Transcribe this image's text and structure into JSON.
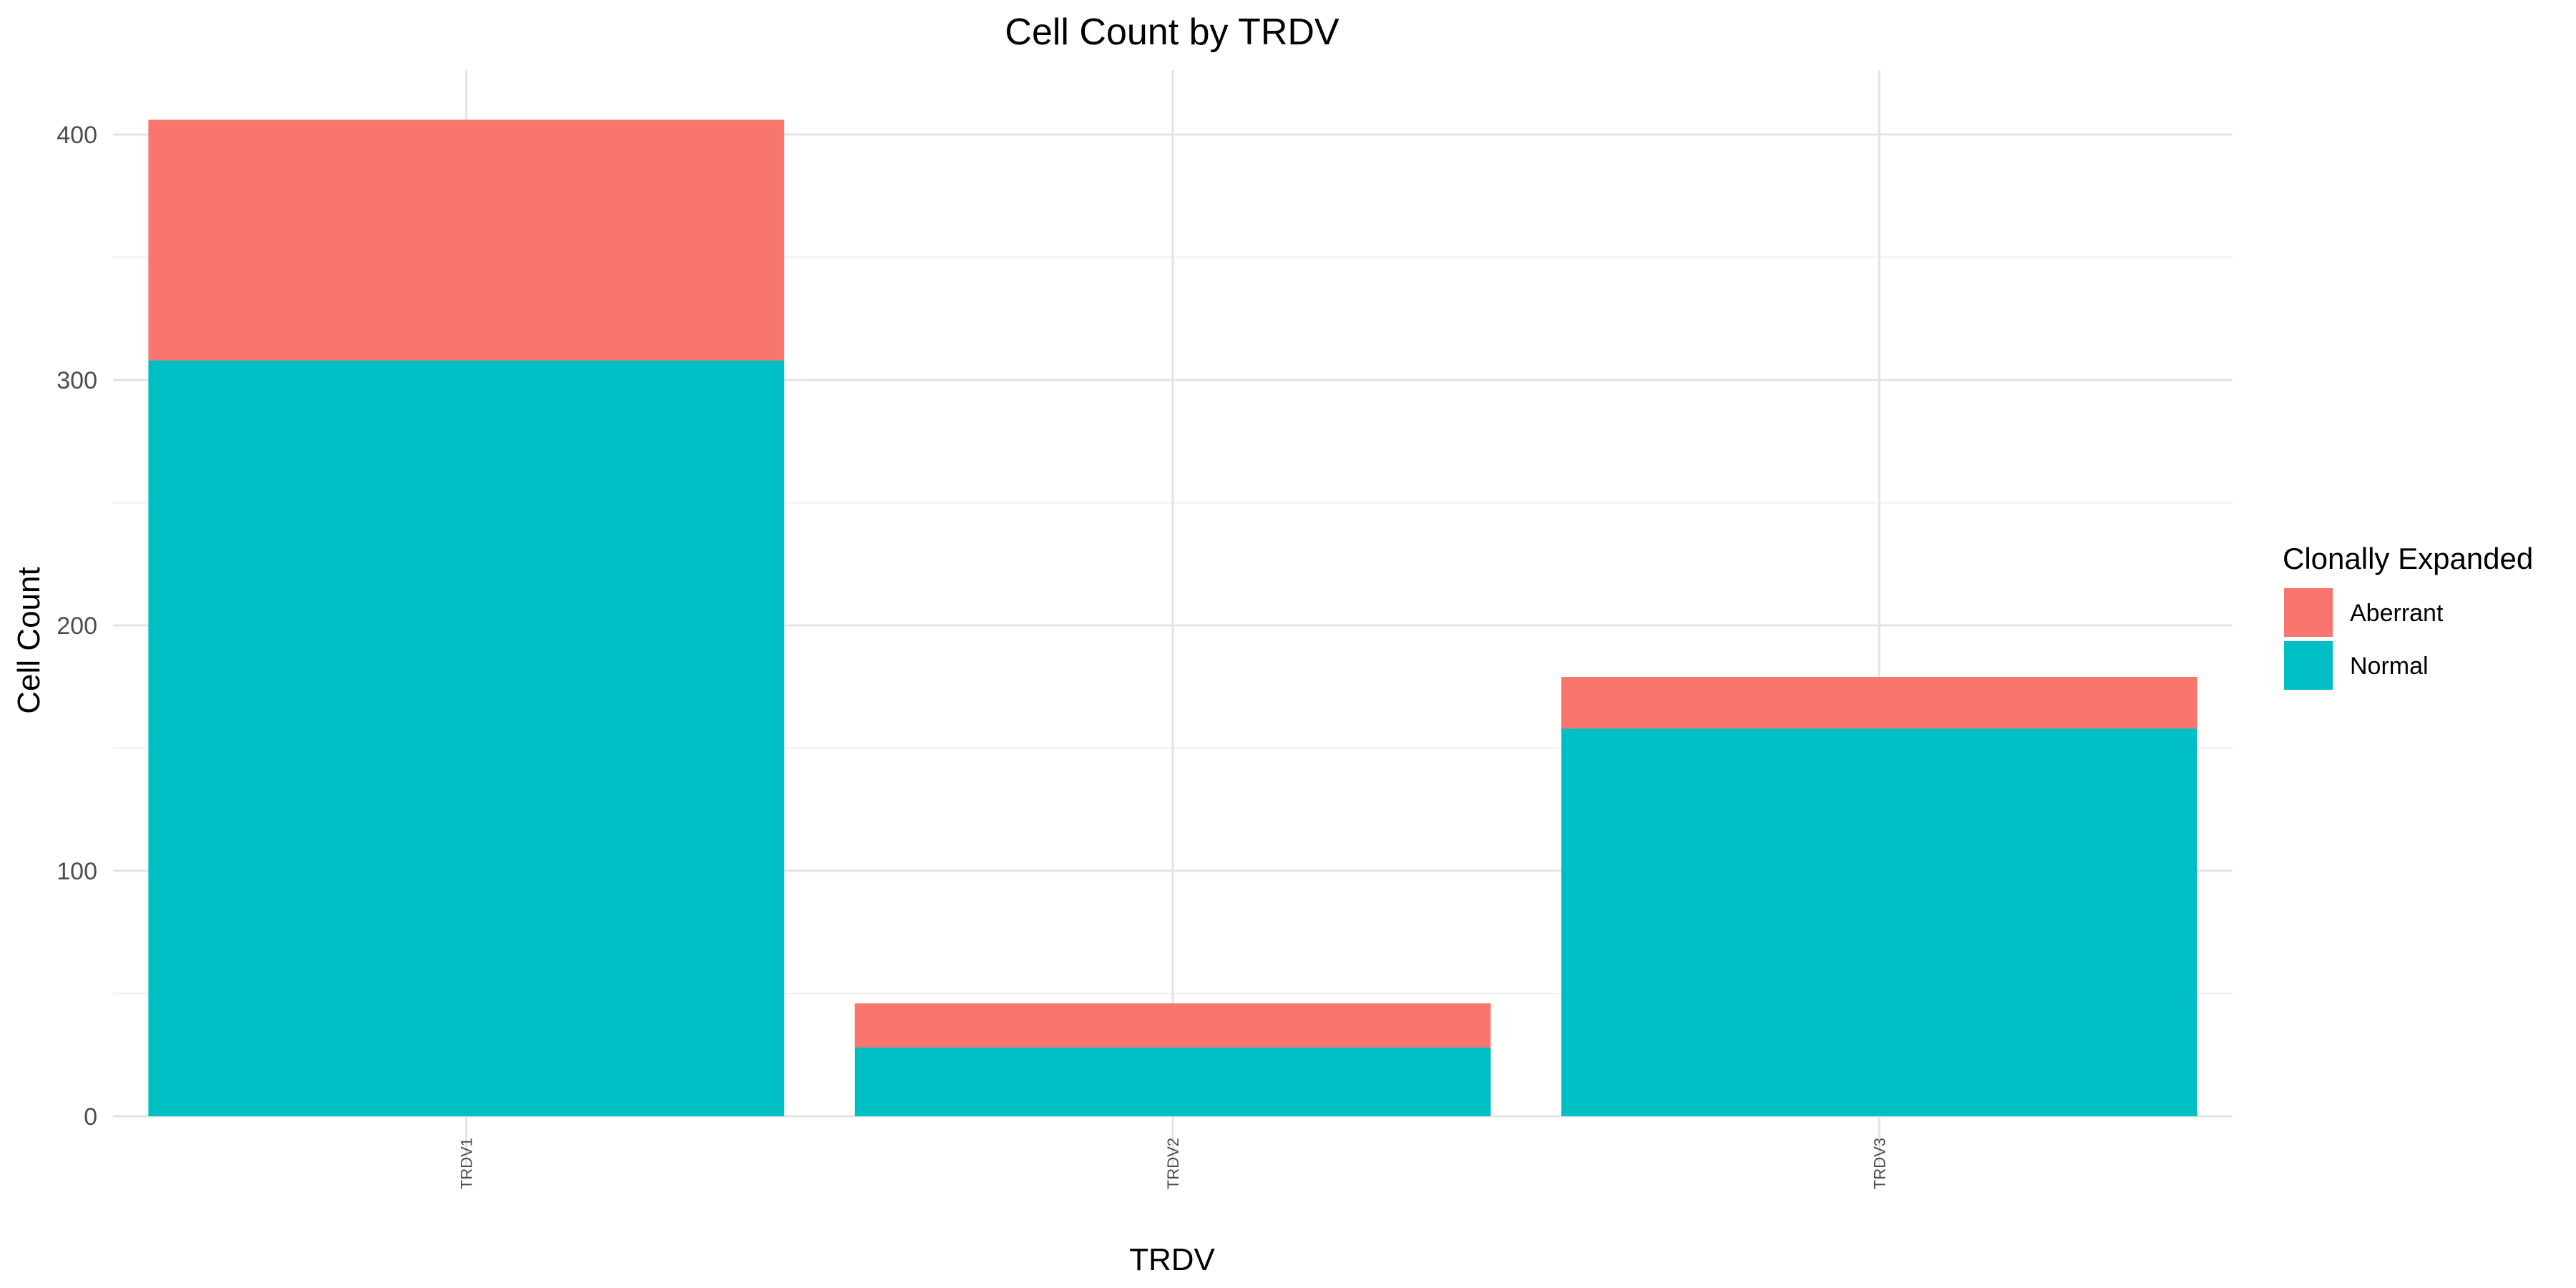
{
  "chart_data": {
    "type": "bar",
    "stacked": true,
    "title": "Cell Count by TRDV",
    "xlabel": "TRDV",
    "ylabel": "Cell Count",
    "categories": [
      "TRDV1",
      "TRDV2",
      "TRDV3"
    ],
    "series": [
      {
        "name": "Normal",
        "color": "#00BFC4",
        "values": [
          308,
          28,
          158
        ]
      },
      {
        "name": "Aberrant",
        "color": "#F8766D",
        "values": [
          98,
          18,
          21
        ]
      }
    ],
    "ylim": [
      0,
      400
    ],
    "yticks": [
      0,
      100,
      200,
      300,
      400
    ],
    "grid": true,
    "legend": {
      "title": "Clonally Expanded",
      "placement": "right",
      "items": [
        {
          "label": "Aberrant",
          "color": "#F8766D"
        },
        {
          "label": "Normal",
          "color": "#00BFC4"
        }
      ]
    }
  }
}
